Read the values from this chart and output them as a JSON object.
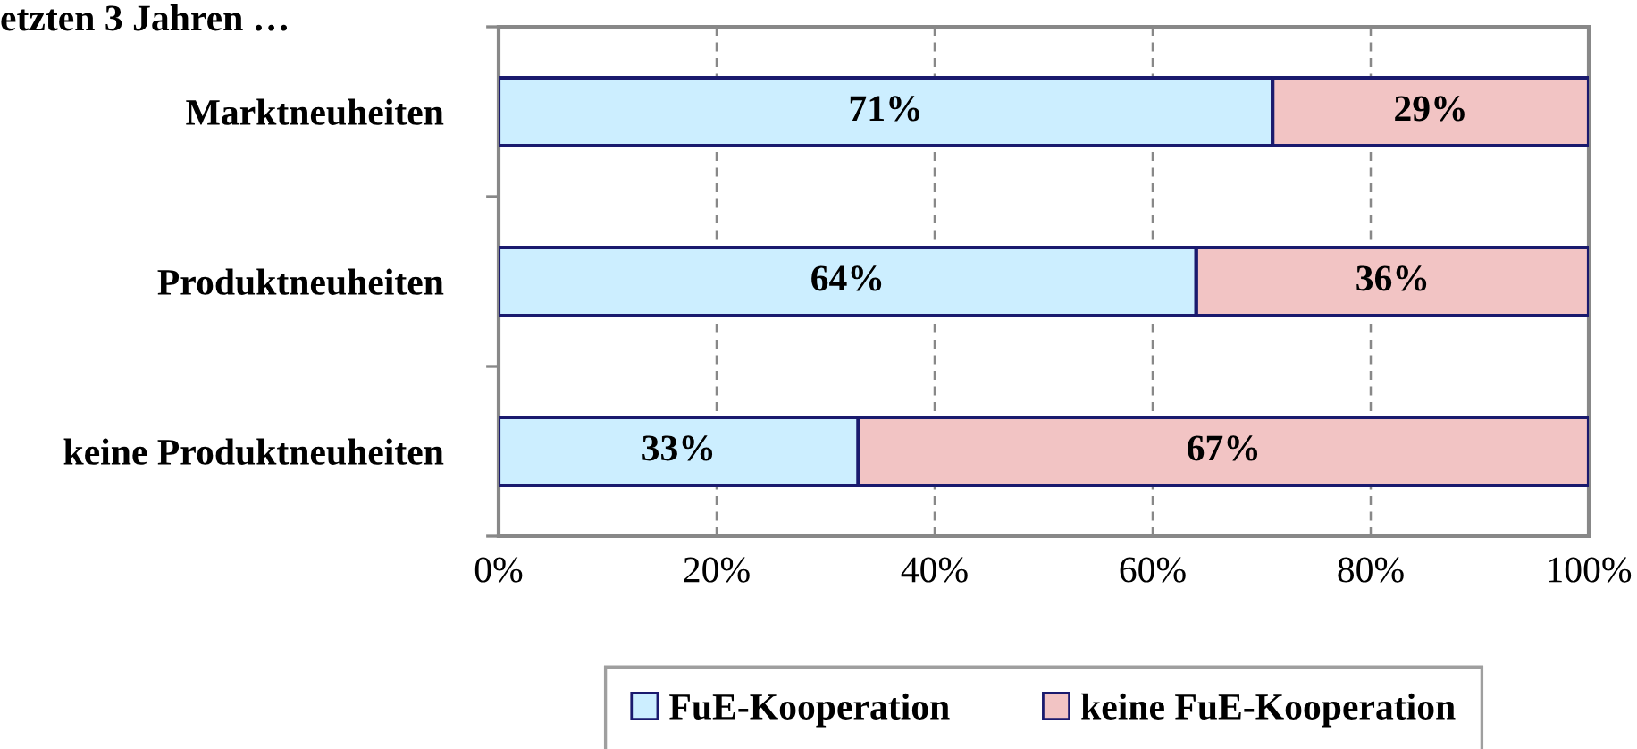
{
  "chart_data": {
    "type": "bar",
    "orientation": "horizontal",
    "stacked": true,
    "title": "etzten 3 Jahren …",
    "categories": [
      "Marktneuheiten",
      "Produktneuheiten",
      "keine Produktneuheiten"
    ],
    "series": [
      {
        "name": "FuE-Kooperation",
        "color": "#cceeff",
        "values": [
          71,
          64,
          33
        ],
        "value_labels": [
          "71%",
          "64%",
          "33%"
        ]
      },
      {
        "name": "keine FuE-Kooperation",
        "color": "#f2c4c4",
        "values": [
          29,
          36,
          67
        ],
        "value_labels": [
          "29%",
          "36%",
          "67%"
        ]
      }
    ],
    "xlim": [
      0,
      100
    ],
    "xticks": [
      {
        "value": 0,
        "label": "0%"
      },
      {
        "value": 20,
        "label": "20%"
      },
      {
        "value": 40,
        "label": "40%"
      },
      {
        "value": 60,
        "label": "60%"
      },
      {
        "value": 80,
        "label": "80%"
      },
      {
        "value": 100,
        "label": "100%"
      }
    ],
    "grid": "x",
    "legend": "bottom"
  }
}
